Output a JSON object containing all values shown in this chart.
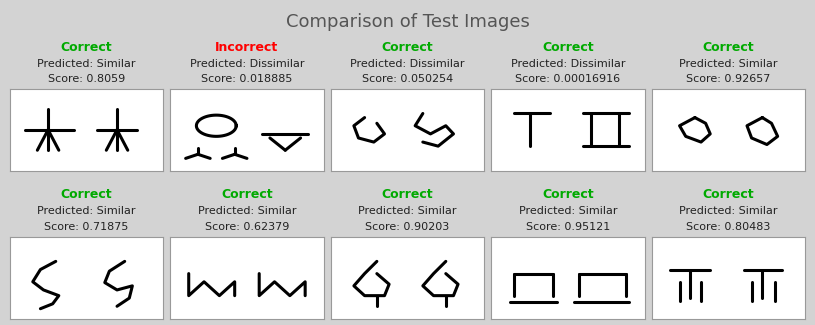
{
  "title": "Comparison of Test Images",
  "background_color": "#d3d3d3",
  "items": [
    {
      "row": 0,
      "col": 0,
      "verdict": "Correct",
      "verdict_color": "#00aa00",
      "predicted": "Similar",
      "score": "0.8059"
    },
    {
      "row": 0,
      "col": 1,
      "verdict": "Incorrect",
      "verdict_color": "#ff0000",
      "predicted": "Dissimilar",
      "score": "0.018885"
    },
    {
      "row": 0,
      "col": 2,
      "verdict": "Correct",
      "verdict_color": "#00aa00",
      "predicted": "Dissimilar",
      "score": "0.050254"
    },
    {
      "row": 0,
      "col": 3,
      "verdict": "Correct",
      "verdict_color": "#00aa00",
      "predicted": "Dissimilar",
      "score": "0.00016916"
    },
    {
      "row": 0,
      "col": 4,
      "verdict": "Correct",
      "verdict_color": "#00aa00",
      "predicted": "Similar",
      "score": "0.92657"
    },
    {
      "row": 1,
      "col": 0,
      "verdict": "Correct",
      "verdict_color": "#00aa00",
      "predicted": "Similar",
      "score": "0.71875"
    },
    {
      "row": 1,
      "col": 1,
      "verdict": "Correct",
      "verdict_color": "#00aa00",
      "predicted": "Similar",
      "score": "0.62379"
    },
    {
      "row": 1,
      "col": 2,
      "verdict": "Correct",
      "verdict_color": "#00aa00",
      "predicted": "Similar",
      "score": "0.90203"
    },
    {
      "row": 1,
      "col": 3,
      "verdict": "Correct",
      "verdict_color": "#00aa00",
      "predicted": "Similar",
      "score": "0.95121"
    },
    {
      "row": 1,
      "col": 4,
      "verdict": "Correct",
      "verdict_color": "#00aa00",
      "predicted": "Similar",
      "score": "0.80483"
    }
  ],
  "title_fontsize": 13,
  "label_fontsize": 8,
  "verdict_fontsize": 9
}
